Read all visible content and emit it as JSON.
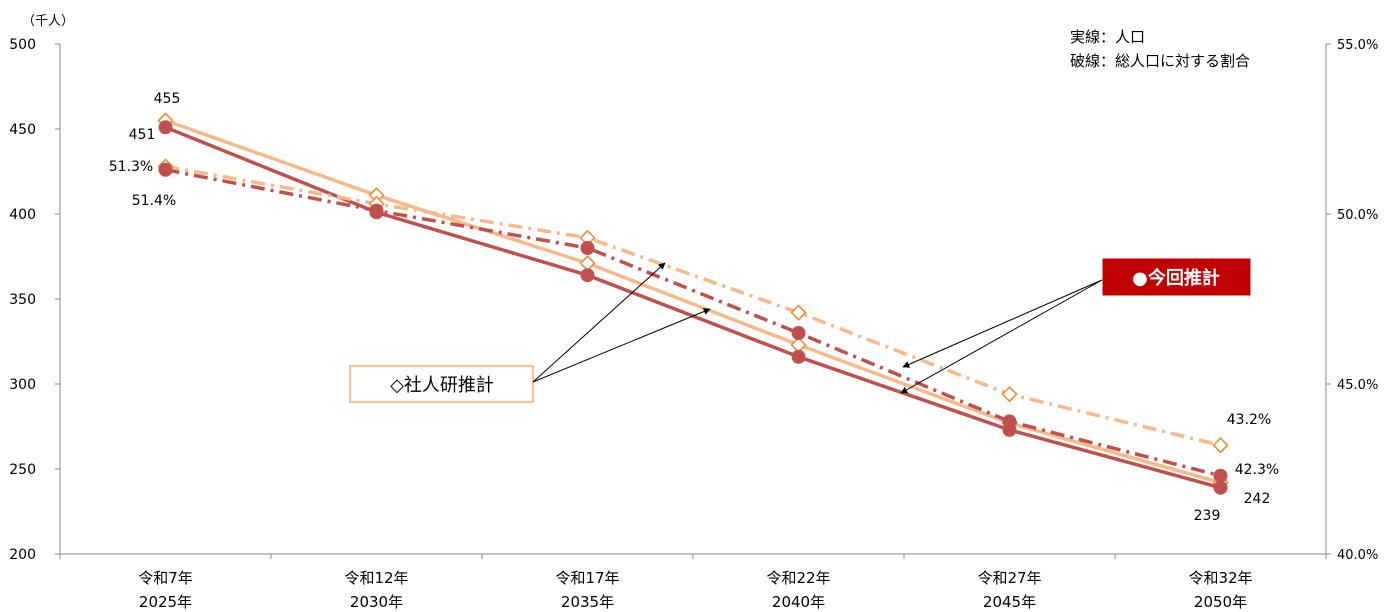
{
  "chart_data": {
    "type": "line",
    "y_unit_label": "（千人）",
    "categories": [
      {
        "era": "令和7年",
        "year": "2025年"
      },
      {
        "era": "令和12年",
        "year": "2030年"
      },
      {
        "era": "令和17年",
        "year": "2035年"
      },
      {
        "era": "令和22年",
        "year": "2040年"
      },
      {
        "era": "令和27年",
        "year": "2045年"
      },
      {
        "era": "令和32年",
        "year": "2050年"
      }
    ],
    "left_axis": {
      "ylim": [
        200,
        500
      ],
      "ticks": [
        "200",
        "250",
        "300",
        "350",
        "400",
        "450",
        "500"
      ]
    },
    "right_axis": {
      "ylim": [
        40.0,
        55.0
      ],
      "ticks": [
        "40.0%",
        "45.0%",
        "50.0%",
        "55.0%"
      ]
    },
    "series": [
      {
        "key": "shajinken_pop",
        "axis": "left",
        "style": "solid",
        "marker": "diamond",
        "color": "#F5B98A",
        "values": [
          455,
          411,
          371,
          323,
          277,
          242
        ]
      },
      {
        "key": "konkai_pop",
        "axis": "left",
        "style": "solid",
        "marker": "circle",
        "color": "#C0504D",
        "values": [
          451,
          401,
          364,
          316,
          273,
          239
        ]
      },
      {
        "key": "shajinken_ratio",
        "axis": "right",
        "style": "dashdot",
        "marker": "diamond",
        "color": "#F5B98A",
        "values": [
          51.4,
          50.3,
          49.3,
          47.1,
          44.7,
          43.2
        ]
      },
      {
        "key": "konkai_ratio",
        "axis": "right",
        "style": "dashdot",
        "marker": "circle",
        "color": "#C0504D",
        "values": [
          51.3,
          50.1,
          49.0,
          46.5,
          43.9,
          42.3
        ]
      }
    ],
    "data_labels": {
      "first_shajinken_pop": "455",
      "first_konkai_pop": "451",
      "first_konkai_ratio": "51.3%",
      "first_shajinken_ratio": "51.4%",
      "last_shajinken_ratio": "43.2%",
      "last_konkai_ratio": "42.3%",
      "last_shajinken_pop": "242",
      "last_konkai_pop": "239"
    },
    "legend_notes": [
      "実線：人口",
      "破線：総人口に対する割合"
    ],
    "callouts": {
      "konkai": "●今回推計",
      "shajinken": "◇社人研推計"
    },
    "grid": false
  }
}
